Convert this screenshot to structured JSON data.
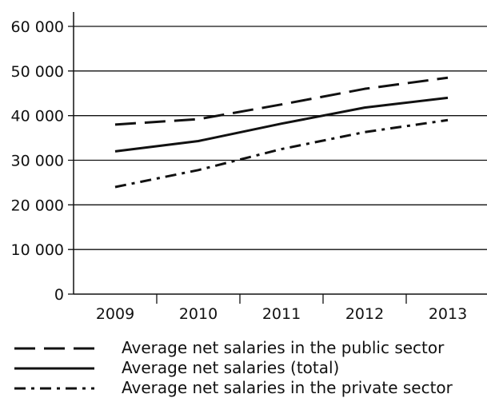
{
  "chart_data": {
    "type": "line",
    "categories": [
      "2009",
      "2010",
      "2011",
      "2012",
      "2013"
    ],
    "y_ticks": [
      "0",
      "10 000",
      "20 000",
      "30 000",
      "40 000",
      "50 000",
      "60 000"
    ],
    "ylim": [
      0,
      60000
    ],
    "grid": "horizontal",
    "legend_position": "bottom",
    "series": [
      {
        "key": "public",
        "name": "Average net salaries in the public sector",
        "values": [
          38000,
          39200,
          42500,
          46000,
          48500
        ],
        "line_style": "dashed"
      },
      {
        "key": "total",
        "name": "Average net salaries  (total)",
        "values": [
          32000,
          34300,
          38200,
          41800,
          44000
        ],
        "line_style": "solid"
      },
      {
        "key": "private",
        "name": "Average net salaries in the private sector",
        "values": [
          24000,
          27800,
          32500,
          36300,
          39000
        ],
        "line_style": "dash-dot"
      }
    ],
    "colors": {
      "line": "#111111",
      "grid": "#111111"
    }
  }
}
